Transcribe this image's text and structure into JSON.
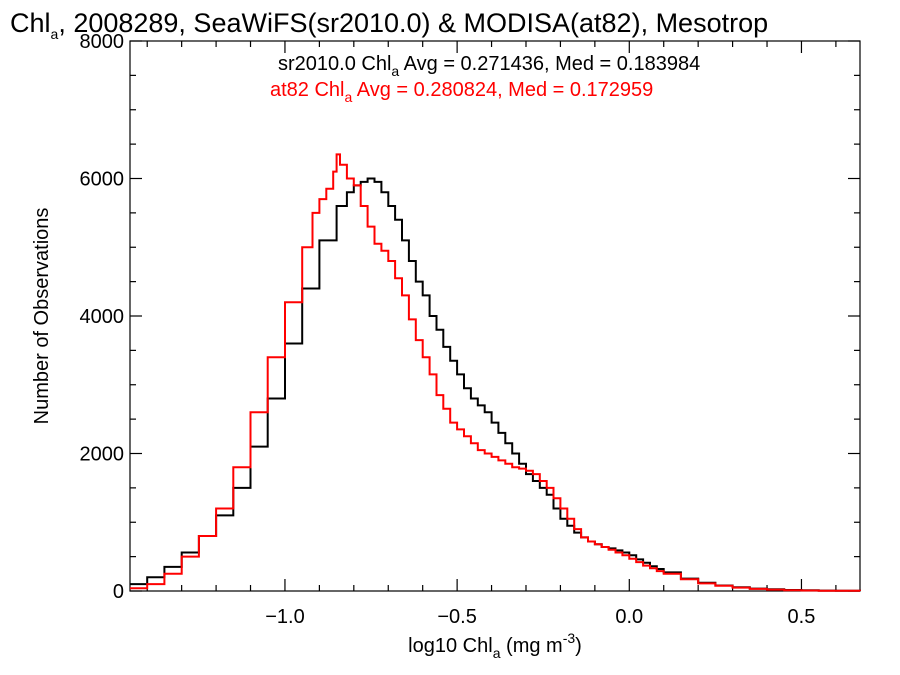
{
  "chart_data": {
    "type": "line",
    "title": {
      "pre": "Chl",
      "sub": "a",
      "post": ", 2008289, SeaWiFS(sr2010.0) & MODISA(at82), Mesotrop"
    },
    "xlabel": {
      "pre": "log10 Chl",
      "sub": "a",
      "mid": " (mg m",
      "sup": "-3",
      "post": ")"
    },
    "ylabel": "Number of Observations",
    "xlim": [
      -1.45,
      0.67
    ],
    "ylim": [
      0,
      8000
    ],
    "xticks": [
      -1.0,
      -0.5,
      0.0,
      0.5
    ],
    "xtick_labels": [
      "−1.0",
      "−0.5",
      "0.0",
      "0.5"
    ],
    "yticks": [
      0,
      2000,
      4000,
      6000,
      8000
    ],
    "ytick_labels": [
      "0",
      "2000",
      "4000",
      "6000",
      "8000"
    ],
    "grid": false,
    "legend_position": "top",
    "series": [
      {
        "name": "sr2010.0",
        "color": "#000000",
        "legend": {
          "pre": "sr2010.0 Chl",
          "sub": "a",
          "post": " Avg = 0.271436, Med = 0.183984"
        },
        "x": [
          -1.45,
          -1.4,
          -1.35,
          -1.3,
          -1.25,
          -1.2,
          -1.15,
          -1.1,
          -1.05,
          -1.0,
          -0.95,
          -0.9,
          -0.85,
          -0.82,
          -0.8,
          -0.78,
          -0.76,
          -0.74,
          -0.72,
          -0.7,
          -0.68,
          -0.66,
          -0.64,
          -0.62,
          -0.6,
          -0.58,
          -0.56,
          -0.54,
          -0.52,
          -0.5,
          -0.48,
          -0.46,
          -0.44,
          -0.42,
          -0.4,
          -0.38,
          -0.36,
          -0.34,
          -0.32,
          -0.3,
          -0.28,
          -0.26,
          -0.24,
          -0.22,
          -0.2,
          -0.18,
          -0.16,
          -0.14,
          -0.12,
          -0.1,
          -0.08,
          -0.06,
          -0.04,
          -0.02,
          0.0,
          0.02,
          0.04,
          0.06,
          0.08,
          0.1,
          0.15,
          0.2,
          0.25,
          0.3,
          0.35,
          0.4,
          0.45,
          0.5,
          0.55,
          0.6,
          0.67
        ],
        "y": [
          100,
          200,
          350,
          560,
          800,
          1100,
          1500,
          2100,
          2800,
          3600,
          4400,
          5100,
          5600,
          5800,
          5900,
          5950,
          6000,
          5950,
          5800,
          5600,
          5400,
          5100,
          4800,
          4500,
          4300,
          4000,
          3800,
          3550,
          3350,
          3150,
          2950,
          2800,
          2700,
          2600,
          2450,
          2300,
          2150,
          2000,
          1850,
          1700,
          1600,
          1500,
          1400,
          1200,
          1050,
          950,
          850,
          780,
          720,
          680,
          640,
          620,
          590,
          560,
          520,
          460,
          410,
          360,
          320,
          270,
          180,
          120,
          80,
          55,
          35,
          25,
          15,
          10,
          6,
          3,
          2
        ]
      },
      {
        "name": "at82",
        "color": "#ff0000",
        "legend": {
          "pre": "at82 Chl",
          "sub": "a",
          "post": " Avg = 0.280824, Med = 0.172959"
        },
        "x": [
          -1.45,
          -1.4,
          -1.35,
          -1.3,
          -1.25,
          -1.2,
          -1.15,
          -1.1,
          -1.05,
          -1.0,
          -0.95,
          -0.92,
          -0.9,
          -0.88,
          -0.86,
          -0.85,
          -0.84,
          -0.82,
          -0.8,
          -0.78,
          -0.76,
          -0.74,
          -0.72,
          -0.7,
          -0.68,
          -0.66,
          -0.64,
          -0.62,
          -0.6,
          -0.58,
          -0.56,
          -0.54,
          -0.52,
          -0.5,
          -0.48,
          -0.46,
          -0.44,
          -0.42,
          -0.4,
          -0.38,
          -0.36,
          -0.34,
          -0.32,
          -0.3,
          -0.28,
          -0.26,
          -0.24,
          -0.22,
          -0.2,
          -0.18,
          -0.16,
          -0.14,
          -0.12,
          -0.1,
          -0.08,
          -0.06,
          -0.04,
          -0.02,
          0.0,
          0.02,
          0.04,
          0.06,
          0.08,
          0.1,
          0.15,
          0.2,
          0.25,
          0.3,
          0.35,
          0.4,
          0.45,
          0.5,
          0.55,
          0.6,
          0.67
        ],
        "y": [
          40,
          100,
          250,
          500,
          800,
          1200,
          1800,
          2600,
          3400,
          4200,
          5000,
          5500,
          5700,
          5850,
          6100,
          6350,
          6200,
          6000,
          5900,
          5600,
          5300,
          5050,
          4950,
          4800,
          4550,
          4300,
          3950,
          3650,
          3400,
          3150,
          2850,
          2650,
          2450,
          2350,
          2250,
          2150,
          2050,
          2000,
          1950,
          1900,
          1850,
          1800,
          1780,
          1750,
          1700,
          1600,
          1500,
          1350,
          1200,
          1050,
          900,
          780,
          720,
          680,
          640,
          600,
          560,
          520,
          470,
          420,
          370,
          330,
          290,
          250,
          170,
          110,
          75,
          50,
          30,
          20,
          12,
          8,
          5,
          3,
          2
        ]
      }
    ]
  }
}
